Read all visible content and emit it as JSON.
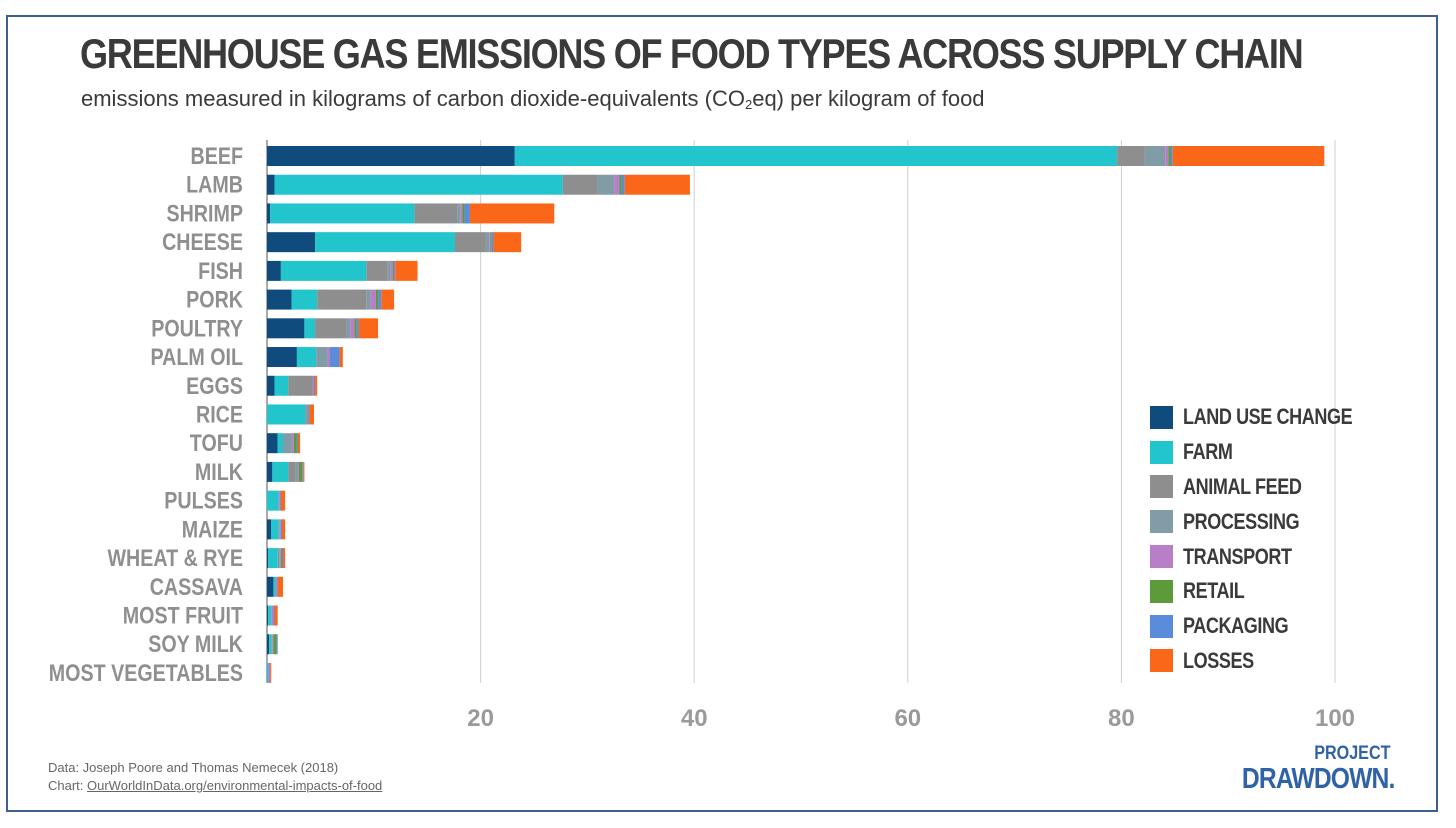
{
  "header": {
    "title": "GREENHOUSE GAS EMISSIONS OF FOOD TYPES ACROSS SUPPLY CHAIN",
    "subtitle_pre": "emissions measured in kilograms of carbon dioxide-equivalents (CO",
    "subtitle_sub": "2",
    "subtitle_post": "eq) per kilogram of food"
  },
  "footer": {
    "data_label": "Data: Joseph Poore and Thomas Nemecek (2018)",
    "chart_prefix": "Chart: ",
    "chart_link": "OurWorldInData.org/environmental-impacts-of-food",
    "logo_line1": "PROJECT",
    "logo_line2": "DRAWDOWN."
  },
  "chart_data": {
    "type": "bar",
    "orientation": "horizontal",
    "stacked": true,
    "title": "GREENHOUSE GAS EMISSIONS OF FOOD TYPES ACROSS SUPPLY CHAIN",
    "xlabel": "",
    "ylabel": "",
    "xlim": [
      0,
      100
    ],
    "xticks": [
      20,
      40,
      60,
      80,
      100
    ],
    "grid": "vertical",
    "legend_position": "right",
    "categories": [
      "BEEF",
      "LAMB",
      "SHRIMP",
      "CHEESE",
      "FISH",
      "PORK",
      "POULTRY",
      "PALM OIL",
      "EGGS",
      "RICE",
      "TOFU",
      "MILK",
      "PULSES",
      "MAIZE",
      "WHEAT & RYE",
      "CASSAVA",
      "MOST FRUIT",
      "SOY MILK",
      "MOST VEGETABLES"
    ],
    "series": [
      {
        "name": "LAND USE CHANGE",
        "color": "#0f4b7d",
        "values": [
          23.2,
          0.7,
          0.3,
          4.5,
          1.3,
          2.3,
          3.5,
          2.8,
          0.7,
          0.0,
          1.0,
          0.5,
          0.0,
          0.4,
          0.1,
          0.6,
          0.1,
          0.2,
          0.0
        ]
      },
      {
        "name": "FARM",
        "color": "#22c5cc",
        "values": [
          56.4,
          27.0,
          13.5,
          13.1,
          8.0,
          2.4,
          1.0,
          1.8,
          1.3,
          3.6,
          0.5,
          1.5,
          1.1,
          0.7,
          0.9,
          0.2,
          0.3,
          0.2,
          0.1
        ]
      },
      {
        "name": "ANIMAL FEED",
        "color": "#8e8e8e",
        "values": [
          2.6,
          3.2,
          4.0,
          2.9,
          2.0,
          4.6,
          2.9,
          0.0,
          2.3,
          0.0,
          0.0,
          0.7,
          0.0,
          0.0,
          0.0,
          0.0,
          0.0,
          0.0,
          0.0
        ]
      },
      {
        "name": "PROCESSING",
        "color": "#819ba7",
        "values": [
          1.9,
          1.6,
          0.3,
          0.3,
          0.3,
          0.4,
          0.4,
          1.1,
          0.0,
          0.1,
          0.8,
          0.2,
          0.0,
          0.1,
          0.2,
          0.0,
          0.0,
          0.1,
          0.0
        ]
      },
      {
        "name": "TRANSPORT",
        "color": "#b87fc8",
        "values": [
          0.3,
          0.5,
          0.2,
          0.1,
          0.2,
          0.5,
          0.4,
          0.2,
          0.1,
          0.1,
          0.2,
          0.1,
          0.1,
          0.1,
          0.1,
          0.1,
          0.2,
          0.1,
          0.1
        ]
      },
      {
        "name": "RETAIL",
        "color": "#5d9a39",
        "values": [
          0.2,
          0.2,
          0.2,
          0.1,
          0.1,
          0.2,
          0.2,
          0.0,
          0.0,
          0.1,
          0.3,
          0.3,
          0.0,
          0.0,
          0.1,
          0.0,
          0.0,
          0.3,
          0.0
        ]
      },
      {
        "name": "PACKAGING",
        "color": "#5b8bdb",
        "values": [
          0.2,
          0.3,
          0.5,
          0.2,
          0.1,
          0.3,
          0.2,
          0.9,
          0.1,
          0.1,
          0.1,
          0.1,
          0.1,
          0.1,
          0.1,
          0.1,
          0.1,
          0.1,
          0.1
        ]
      },
      {
        "name": "LOSSES",
        "color": "#fb6719",
        "values": [
          14.2,
          6.1,
          7.9,
          2.6,
          2.1,
          1.2,
          1.8,
          0.3,
          0.2,
          0.4,
          0.2,
          0.1,
          0.4,
          0.3,
          0.2,
          0.5,
          0.3,
          0.0,
          0.1
        ]
      }
    ]
  }
}
